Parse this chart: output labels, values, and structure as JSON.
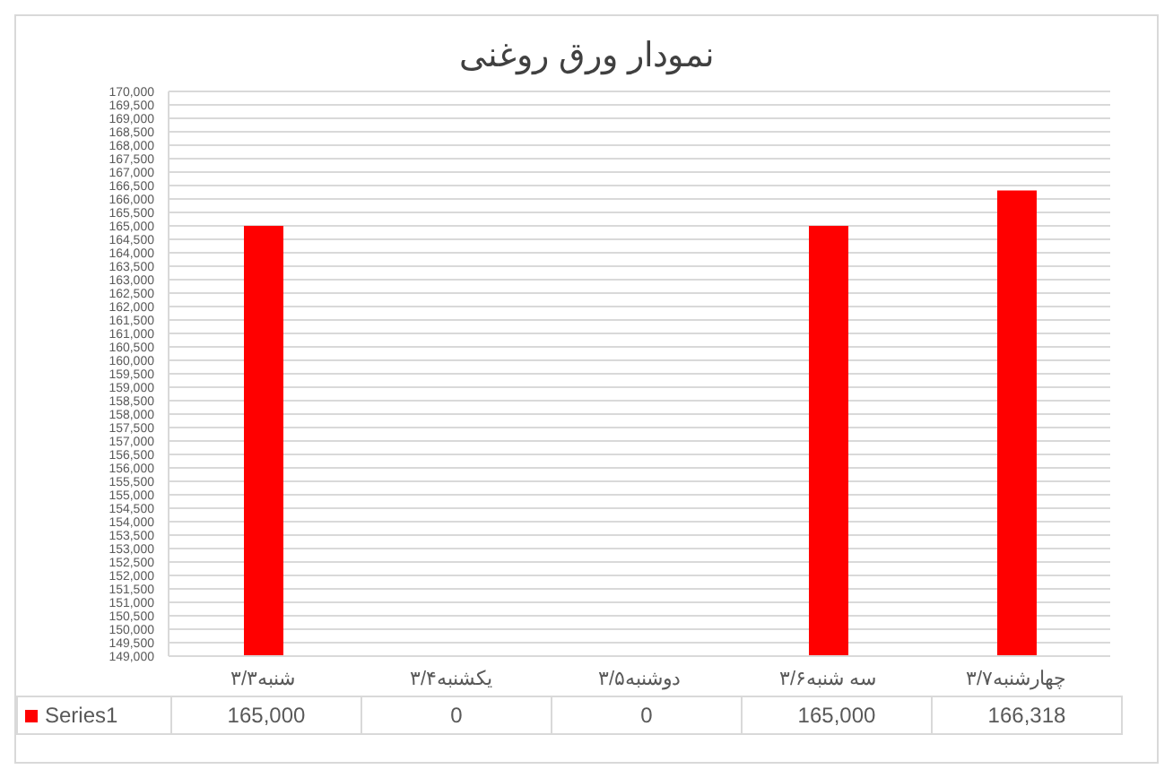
{
  "chart_data": {
    "type": "bar",
    "title": "نمودار ورق روغنی",
    "categories": [
      "شنبه۳/۳",
      "یکشنبه۳/۴",
      "دوشنبه۳/۵",
      "سه شنبه۳/۶",
      "چهارشنبه۳/۷"
    ],
    "series": [
      {
        "name": "Series1",
        "color": "#ff0000",
        "values": [
          165000,
          null,
          null,
          165000,
          166318
        ],
        "value_labels": [
          "165,000",
          "0",
          "0",
          "165,000",
          "166,318"
        ]
      }
    ],
    "ylim": [
      149000,
      170000
    ],
    "yticks": [
      {
        "value": 149000,
        "label": "149,000"
      },
      {
        "value": 149500,
        "label": "149,500"
      },
      {
        "value": 150000,
        "label": "150,000"
      },
      {
        "value": 150500,
        "label": "150,500"
      },
      {
        "value": 151000,
        "label": "151,000"
      },
      {
        "value": 151500,
        "label": "151,500"
      },
      {
        "value": 152000,
        "label": "152,000"
      },
      {
        "value": 152500,
        "label": "152,500"
      },
      {
        "value": 153000,
        "label": "153,000"
      },
      {
        "value": 153500,
        "label": "153,500"
      },
      {
        "value": 154000,
        "label": "154,000"
      },
      {
        "value": 154500,
        "label": "154,500"
      },
      {
        "value": 155000,
        "label": "155,000"
      },
      {
        "value": 155500,
        "label": "155,500"
      },
      {
        "value": 156000,
        "label": "156,000"
      },
      {
        "value": 156500,
        "label": "156,500"
      },
      {
        "value": 157000,
        "label": "157,000"
      },
      {
        "value": 157500,
        "label": "157,500"
      },
      {
        "value": 158000,
        "label": "158,000"
      },
      {
        "value": 158500,
        "label": "158,500"
      },
      {
        "value": 159000,
        "label": "159,000"
      },
      {
        "value": 159500,
        "label": "159,500"
      },
      {
        "value": 160000,
        "label": "160,000"
      },
      {
        "value": 160500,
        "label": "160,500"
      },
      {
        "value": 161000,
        "label": "161,000"
      },
      {
        "value": 161500,
        "label": "161,500"
      },
      {
        "value": 162000,
        "label": "162,000"
      },
      {
        "value": 162500,
        "label": "162,500"
      },
      {
        "value": 163000,
        "label": "163,000"
      },
      {
        "value": 163500,
        "label": "163,500"
      },
      {
        "value": 164000,
        "label": "164,000"
      },
      {
        "value": 164500,
        "label": "164,500"
      },
      {
        "value": 165000,
        "label": "165,000"
      },
      {
        "value": 165500,
        "label": "165,500"
      },
      {
        "value": 166000,
        "label": "166,000"
      },
      {
        "value": 166500,
        "label": "166,500"
      },
      {
        "value": 167000,
        "label": "167,000"
      },
      {
        "value": 167500,
        "label": "167,500"
      },
      {
        "value": 168000,
        "label": "168,000"
      },
      {
        "value": 168500,
        "label": "168,500"
      },
      {
        "value": 169000,
        "label": "169,000"
      },
      {
        "value": 169500,
        "label": "169,500"
      },
      {
        "value": 170000,
        "label": "170,000"
      }
    ],
    "grid": "y",
    "legend": "bottom left"
  }
}
